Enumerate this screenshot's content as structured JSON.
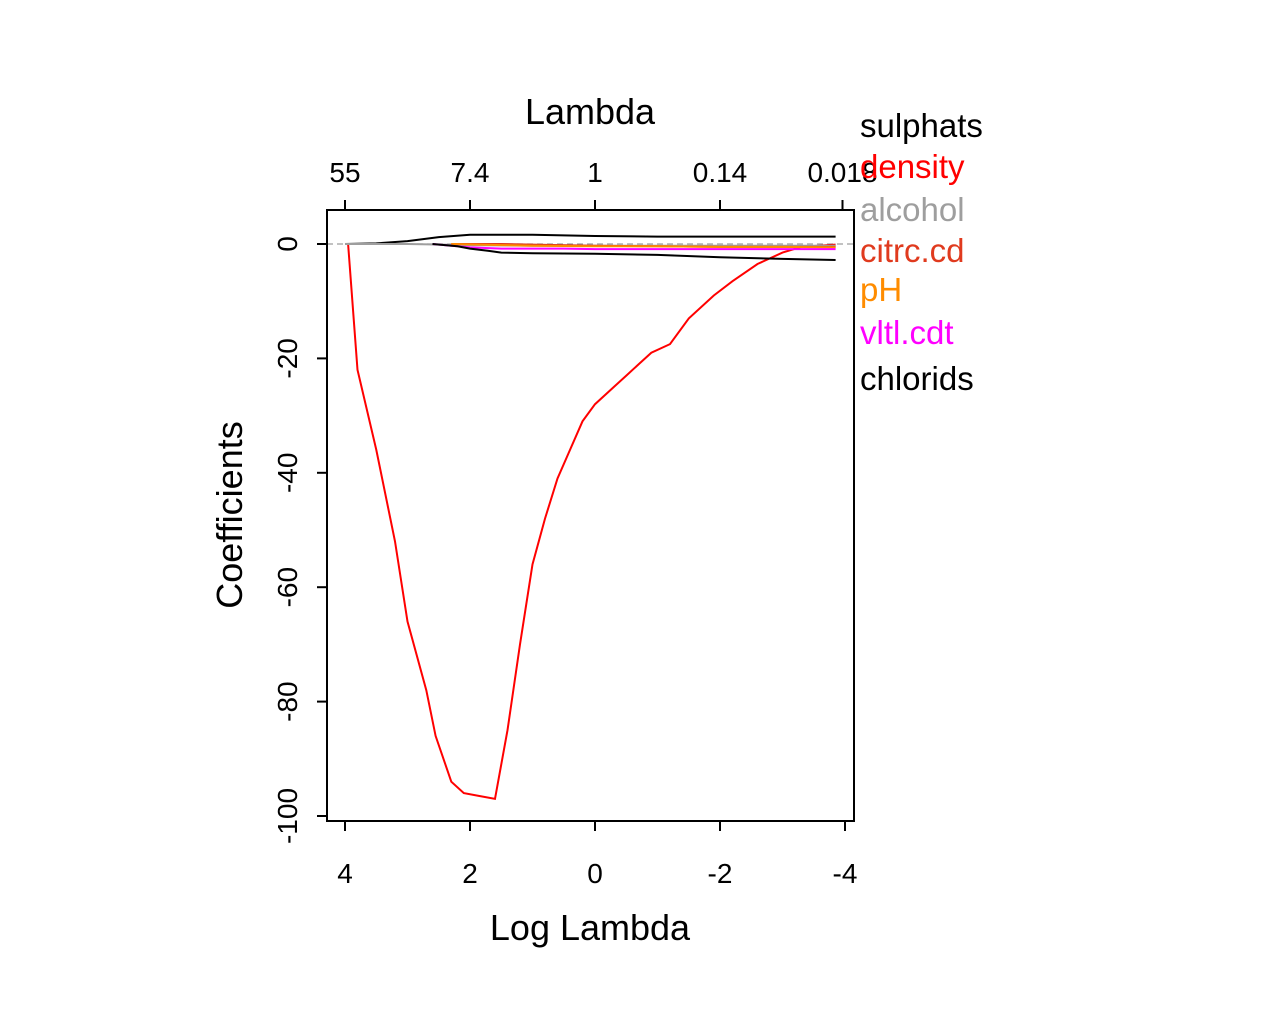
{
  "chart_data": {
    "type": "line",
    "title": "",
    "xlabel": "Log Lambda",
    "ylabel": "Coefficients",
    "top_axis_label": "Lambda",
    "xlim": [
      4.2,
      -4.2
    ],
    "ylim": [
      -100,
      6
    ],
    "x_ticks": [
      4,
      2,
      0,
      -2,
      -4
    ],
    "x_tick_labels": [
      "4",
      "2",
      "0",
      "-2",
      "-4"
    ],
    "y_ticks": [
      0,
      -20,
      -40,
      -60,
      -80,
      -100
    ],
    "y_tick_labels": [
      "0",
      "-20",
      "-40",
      "-60",
      "-80",
      "-100"
    ],
    "top_ticks_loglambda": [
      4.0,
      2.0,
      0.0,
      -2.0,
      -3.96
    ],
    "top_tick_labels": [
      "55",
      "7.4",
      "1",
      "0.14",
      "0.018"
    ],
    "zero_line": true,
    "grid": false,
    "legend_placement": "right-outside",
    "series": [
      {
        "name": "sulphats",
        "color": "#000000",
        "x": [
          4.0,
          3.5,
          3.0,
          2.5,
          2.0,
          1.0,
          0.0,
          -1.0,
          -2.0,
          -3.0,
          -3.85
        ],
        "y": [
          0,
          0.1,
          0.5,
          1.2,
          1.6,
          1.6,
          1.4,
          1.3,
          1.3,
          1.3,
          1.3
        ]
      },
      {
        "name": "density",
        "color": "#ff0000",
        "x": [
          3.95,
          3.8,
          3.5,
          3.2,
          3.0,
          2.7,
          2.55,
          2.3,
          2.1,
          1.85,
          1.6,
          1.4,
          1.2,
          1.0,
          0.8,
          0.6,
          0.4,
          0.2,
          0.0,
          -0.3,
          -0.5,
          -0.7,
          -0.9,
          -1.2,
          -1.5,
          -1.9,
          -2.2,
          -2.6,
          -3.0,
          -3.3,
          -3.85
        ],
        "y": [
          0,
          -22,
          -36,
          -52,
          -66,
          -78,
          -86,
          -94,
          -96,
          -96.5,
          -97,
          -85,
          -70,
          -56,
          -48,
          -41,
          -36,
          -31,
          -28,
          -25,
          -23,
          -21,
          -19,
          -17.5,
          -13,
          -9,
          -6.5,
          -3.5,
          -1.5,
          -0.5,
          -0.1
        ]
      },
      {
        "name": "alcohol",
        "color": "#9e9e9e",
        "x": [
          4.0,
          3.0,
          2.0,
          1.0,
          0.0,
          -2.0,
          -3.85
        ],
        "y": [
          0,
          0,
          -0.2,
          -0.3,
          -0.3,
          -0.3,
          -0.3
        ]
      },
      {
        "name": "citrc.cd",
        "color": "#e03a1e",
        "x": [
          2.3,
          1.5,
          1.0,
          0.0,
          -1.0,
          -2.0,
          -3.0,
          -3.85
        ],
        "y": [
          0,
          0,
          -0.1,
          -0.3,
          -0.4,
          -0.5,
          -0.5,
          -0.5
        ]
      },
      {
        "name": "pH",
        "color": "#ff8c00",
        "x": [
          2.3,
          1.5,
          1.0,
          0.0,
          -1.0,
          -2.0,
          -3.0,
          -3.85
        ],
        "y": [
          0,
          -0.2,
          -0.3,
          -0.4,
          -0.4,
          -0.5,
          -0.5,
          -0.6
        ]
      },
      {
        "name": "vltl.cdt",
        "color": "#ff00ff",
        "x": [
          2.6,
          2.3,
          2.0,
          1.5,
          1.0,
          0.5,
          0.0,
          -1.0,
          -2.0,
          -3.0,
          -3.85
        ],
        "y": [
          0,
          -0.3,
          -0.6,
          -0.8,
          -0.8,
          -0.8,
          -0.9,
          -0.9,
          -0.9,
          -0.9,
          -0.9
        ]
      },
      {
        "name": "chlorids",
        "color": "#000000",
        "x": [
          2.6,
          2.2,
          2.0,
          1.7,
          1.5,
          1.0,
          0.0,
          -1.0,
          -2.0,
          -3.0,
          -3.85
        ],
        "y": [
          0,
          -0.4,
          -0.8,
          -1.2,
          -1.5,
          -1.6,
          -1.7,
          -1.9,
          -2.3,
          -2.6,
          -2.8
        ]
      }
    ]
  }
}
